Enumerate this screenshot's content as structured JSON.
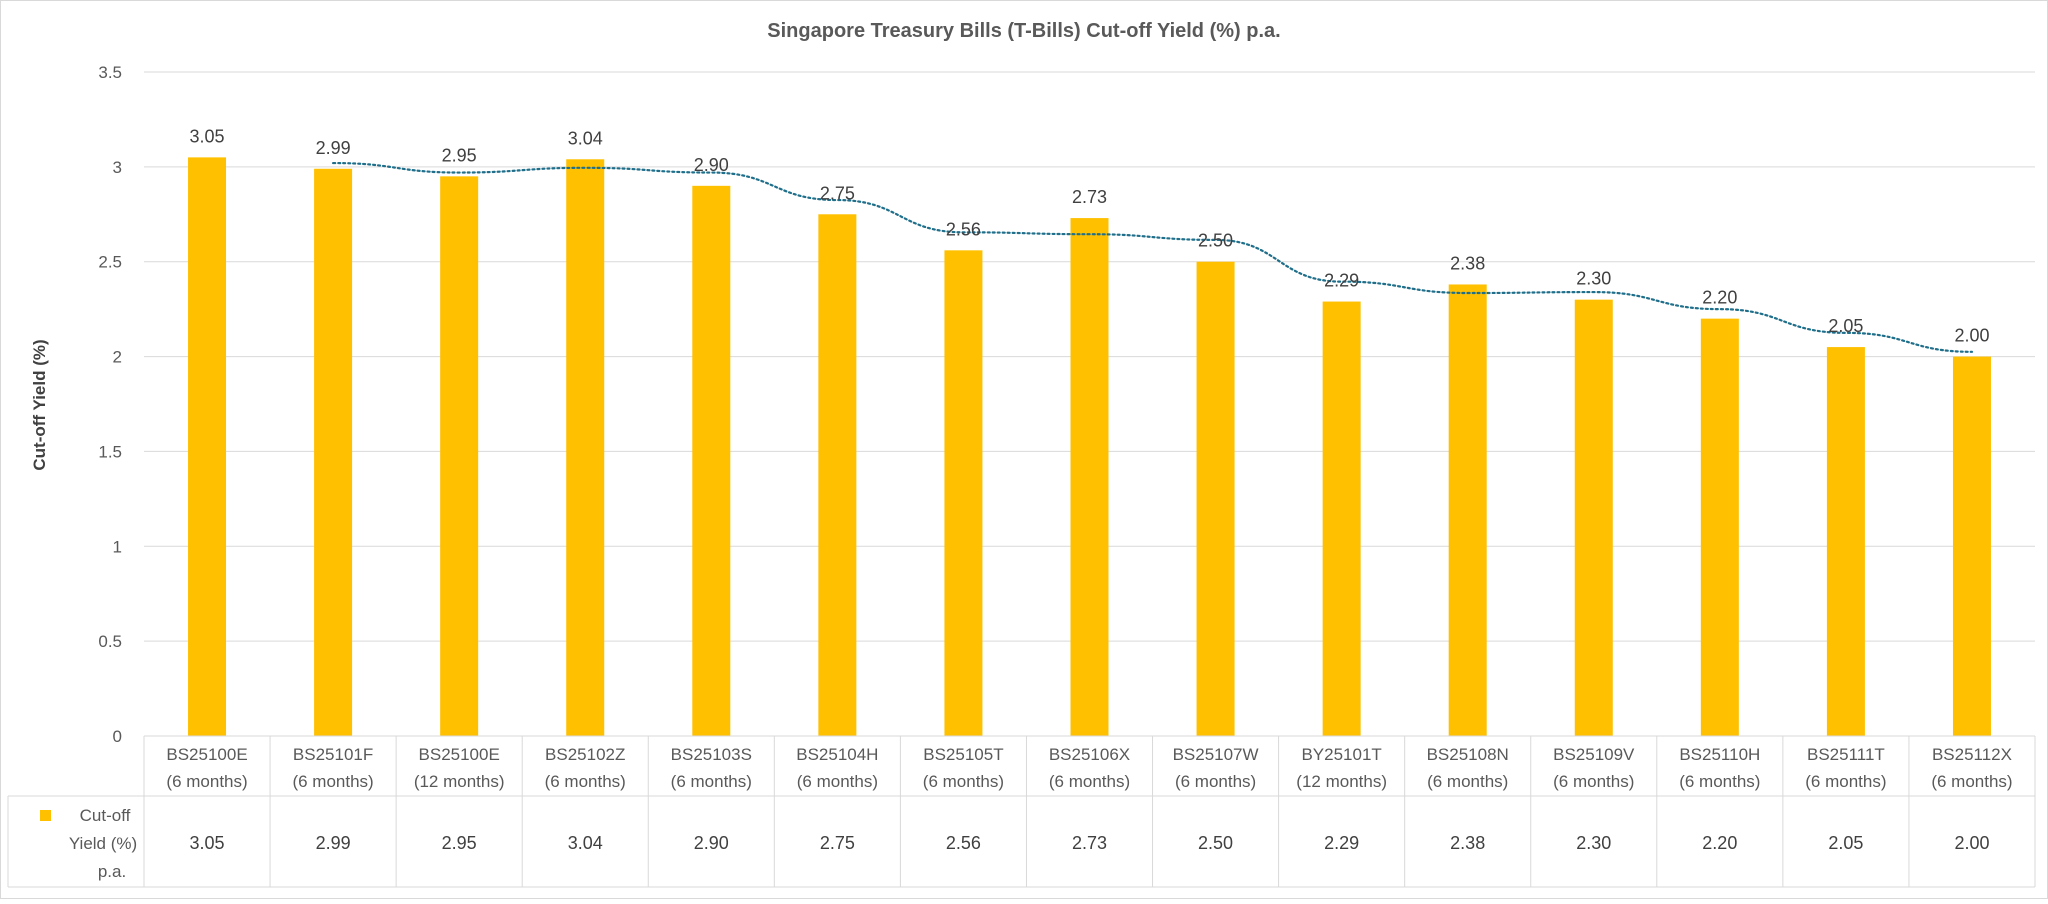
{
  "chart_data": {
    "type": "bar",
    "title": "Singapore Treasury Bills (T-Bills) Cut-off Yield (%) p.a.",
    "xlabel": "",
    "ylabel": "Cut-off Yield (%)",
    "ylim": [
      0,
      3.5
    ],
    "yticks": [
      0,
      0.5,
      1,
      1.5,
      2,
      2.5,
      3,
      3.5
    ],
    "ytick_labels": [
      "0",
      "0.5",
      "1",
      "1.5",
      "2",
      "2.5",
      "3",
      "3.5"
    ],
    "grid": true,
    "legend": "in data table",
    "categories": [
      {
        "code": "BS25100E",
        "tenor": "(6 months)"
      },
      {
        "code": "BS25101F",
        "tenor": "(6 months)"
      },
      {
        "code": "BS25100E",
        "tenor": "(12 months)"
      },
      {
        "code": "BS25102Z",
        "tenor": "(6 months)"
      },
      {
        "code": "BS25103S",
        "tenor": "(6 months)"
      },
      {
        "code": "BS25104H",
        "tenor": "(6 months)"
      },
      {
        "code": "BS25105T",
        "tenor": "(6 months)"
      },
      {
        "code": "BS25106X",
        "tenor": "(6 months)"
      },
      {
        "code": "BS25107W",
        "tenor": "(6 months)"
      },
      {
        "code": "BY25101T",
        "tenor": "(12 months)"
      },
      {
        "code": "BS25108N",
        "tenor": "(6 months)"
      },
      {
        "code": "BS25109V",
        "tenor": "(6 months)"
      },
      {
        "code": "BS25110H",
        "tenor": "(6 months)"
      },
      {
        "code": "BS25111T",
        "tenor": "(6 months)"
      },
      {
        "code": "BS25112X",
        "tenor": "(6 months)"
      }
    ],
    "series": [
      {
        "name": "Cut-off Yield (%) p.a.",
        "legend_lines": [
          "Cut-off",
          "Yield (%)",
          "p.a."
        ],
        "color": "#FFC000",
        "values": [
          3.05,
          2.99,
          2.95,
          3.04,
          2.9,
          2.75,
          2.56,
          2.73,
          2.5,
          2.29,
          2.38,
          2.3,
          2.2,
          2.05,
          2.0
        ],
        "labels": [
          "3.05",
          "2.99",
          "2.95",
          "3.04",
          "2.90",
          "2.75",
          "2.56",
          "2.73",
          "2.50",
          "2.29",
          "2.38",
          "2.30",
          "2.20",
          "2.05",
          "2.00"
        ]
      }
    ],
    "trendline": {
      "type": "moving-average",
      "period": 2,
      "style": "dotted",
      "color": "#1F6F8B"
    }
  }
}
